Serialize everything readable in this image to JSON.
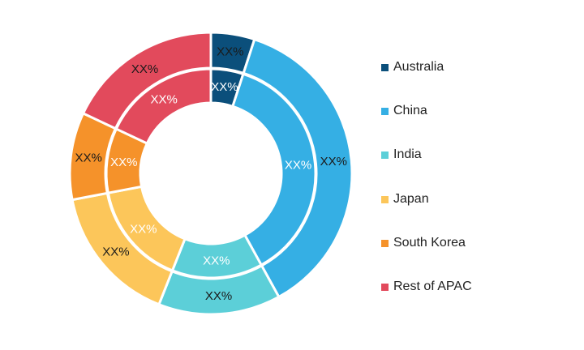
{
  "chart_data": {
    "type": "donut",
    "title": "",
    "categories": [
      "Australia",
      "China",
      "India",
      "Japan",
      "South Korea",
      "Rest of APAC"
    ],
    "series": [
      {
        "ring": "outer",
        "values": [
          5,
          37,
          14,
          16,
          10,
          18
        ],
        "labels": [
          "XX%",
          "XX%",
          "XX%",
          "XX%",
          "XX%",
          "XX%"
        ]
      },
      {
        "ring": "inner",
        "values": [
          5,
          37,
          14,
          16,
          10,
          18
        ],
        "labels": [
          "XX%",
          "XX%",
          "XX%",
          "XX%",
          "XX%",
          "XX%"
        ]
      }
    ],
    "colors": [
      "#0b4f7b",
      "#35afe4",
      "#5ccfd8",
      "#fcc65a",
      "#f5922a",
      "#e24a5c"
    ],
    "outer_label_colors": [
      "#1a1a1a",
      "#1a1a1a",
      "#1a1a1a",
      "#1a1a1a",
      "#1a1a1a",
      "#1a1a1a"
    ],
    "inner_label_colors": [
      "#ffffff",
      "#ffffff",
      "#ffffff",
      "#ffffff",
      "#ffffff",
      "#ffffff"
    ],
    "legend_position": "right"
  },
  "legend": {
    "items": [
      {
        "label": "Australia",
        "color": "#0b4f7b"
      },
      {
        "label": "China",
        "color": "#35afe4"
      },
      {
        "label": "India",
        "color": "#5ccfd8"
      },
      {
        "label": "Japan",
        "color": "#fcc65a"
      },
      {
        "label": "South Korea",
        "color": "#f5922a"
      },
      {
        "label": "Rest of APAC",
        "color": "#e24a5c"
      }
    ]
  }
}
